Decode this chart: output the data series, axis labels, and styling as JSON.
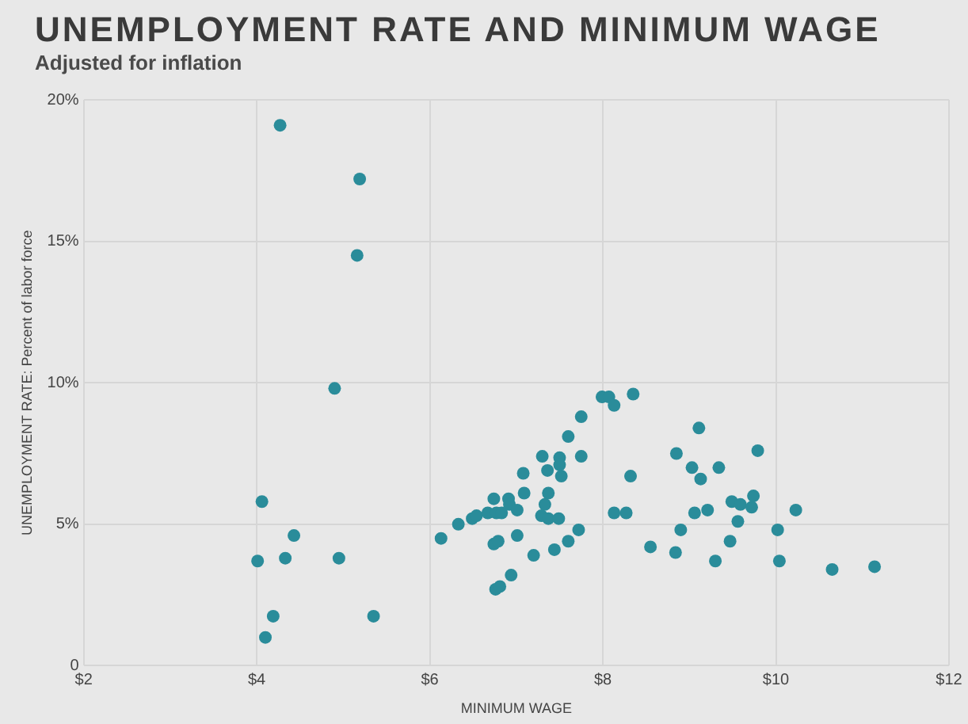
{
  "chart_data": {
    "type": "scatter",
    "title": "UNEMPLOYMENT RATE AND MINIMUM WAGE",
    "subtitle": "Adjusted for inflation",
    "xlabel": "MINIMUM WAGE",
    "ylabel": "UNEMPLOYMENT RATE: Percent of labor force",
    "xlim": [
      2,
      12
    ],
    "xticks": [
      {
        "value": 2,
        "label": "$2"
      },
      {
        "value": 4,
        "label": "$4"
      },
      {
        "value": 6,
        "label": "$6"
      },
      {
        "value": 8,
        "label": "$8"
      },
      {
        "value": 10,
        "label": "$10"
      },
      {
        "value": 12,
        "label": "$12"
      }
    ],
    "ylim": [
      0,
      20
    ],
    "yticks": [
      0,
      {
        "value": 5,
        "label": "5%"
      },
      {
        "value": 10,
        "label": "10%"
      },
      {
        "value": 15,
        "label": "15%"
      },
      {
        "value": 20,
        "label": "20%"
      }
    ],
    "grid": true,
    "legend": false,
    "marker": "circle",
    "series": [
      {
        "color": "#2a8c9a",
        "x": [
          4.27,
          5.19,
          5.16,
          4.9,
          4.06,
          4.43,
          4.01,
          4.33,
          4.95,
          4.19,
          4.1,
          5.35,
          6.13,
          6.33,
          6.49,
          6.54,
          6.67,
          6.74,
          6.77,
          6.83,
          6.91,
          6.92,
          7.01,
          6.74,
          6.79,
          7.01,
          6.76,
          6.81,
          6.94,
          7.2,
          7.09,
          7.08,
          7.3,
          7.36,
          7.5,
          7.5,
          7.52,
          7.37,
          7.33,
          7.29,
          7.37,
          7.49,
          7.44,
          7.6,
          7.72,
          7.75,
          7.6,
          7.75,
          7.99,
          8.07,
          8.13,
          8.35,
          8.32,
          8.13,
          8.27,
          8.55,
          8.84,
          8.9,
          8.85,
          9.11,
          9.03,
          9.13,
          9.34,
          9.79,
          9.49,
          9.59,
          9.74,
          9.72,
          9.56,
          9.21,
          9.06,
          9.3,
          9.47,
          10.02,
          10.23,
          10.04,
          10.65,
          11.14
        ],
        "values": [
          19.1,
          17.2,
          14.5,
          9.8,
          5.8,
          4.6,
          3.7,
          3.8,
          3.8,
          1.75,
          1.0,
          1.75,
          4.5,
          5.0,
          5.2,
          5.3,
          5.4,
          5.9,
          5.4,
          5.4,
          5.9,
          5.7,
          5.5,
          4.3,
          4.4,
          4.6,
          2.7,
          2.8,
          3.2,
          3.9,
          6.1,
          6.8,
          7.4,
          6.9,
          7.35,
          7.1,
          6.7,
          6.1,
          5.7,
          5.3,
          5.2,
          5.2,
          4.1,
          4.4,
          4.8,
          7.4,
          8.1,
          8.8,
          9.5,
          9.5,
          9.2,
          9.6,
          6.7,
          5.4,
          5.4,
          4.2,
          4.0,
          4.8,
          7.5,
          8.4,
          7.0,
          6.6,
          7.0,
          7.6,
          5.8,
          5.7,
          6.0,
          5.6,
          5.1,
          5.5,
          5.4,
          3.7,
          4.4,
          4.8,
          5.5,
          3.7,
          3.4,
          3.5
        ]
      }
    ]
  }
}
